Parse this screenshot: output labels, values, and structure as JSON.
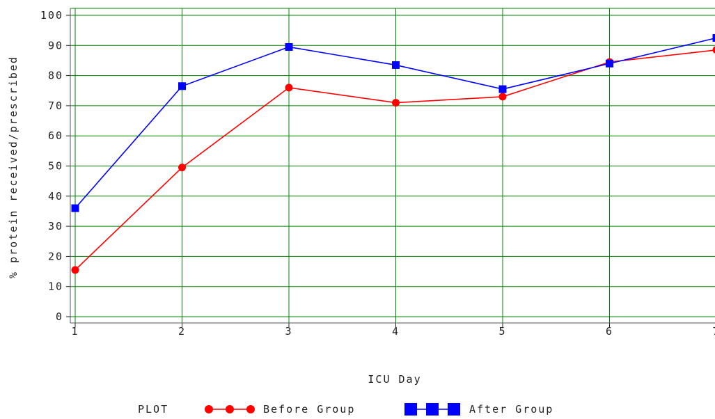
{
  "chart_data": {
    "type": "line",
    "title": "",
    "xlabel": "ICU Day",
    "ylabel": "% protein received/prescribed",
    "x": [
      1,
      2,
      3,
      4,
      5,
      6,
      7
    ],
    "x_tick_labels": [
      "1",
      "2",
      "3",
      "4",
      "5",
      "6",
      "7"
    ],
    "y_tick_labels": [
      "0",
      "10",
      "20",
      "30",
      "40",
      "50",
      "60",
      "70",
      "80",
      "90",
      "100"
    ],
    "xlim": [
      1,
      7
    ],
    "ylim": [
      0,
      100
    ],
    "grid": true,
    "legend": {
      "placement": "bottom",
      "title": "PLOT"
    },
    "series": [
      {
        "name": "Before Group",
        "values": [
          15.5,
          49.5,
          76,
          71,
          73,
          84.5,
          88.5
        ],
        "color": "#ff0000",
        "marker": "circle"
      },
      {
        "name": "After Group",
        "values": [
          36,
          76.5,
          89.5,
          83.5,
          75.5,
          84,
          92.5
        ],
        "color": "#0000ff",
        "marker": "square"
      }
    ],
    "grid_color": "#008000"
  }
}
